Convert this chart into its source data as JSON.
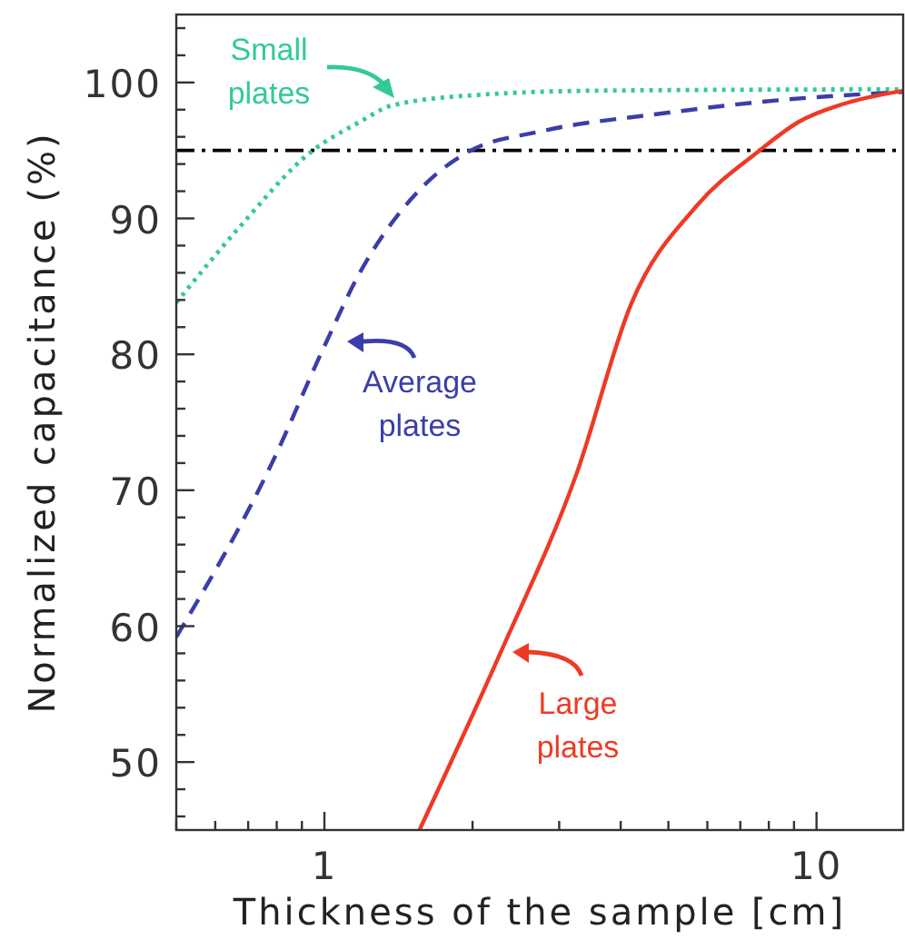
{
  "chart_data": {
    "type": "line",
    "xlabel": "Thickness of the sample [cm]",
    "ylabel": "Normalized capacitance (%)",
    "log": "x",
    "xlim": [
      0.5,
      15
    ],
    "ylim": [
      45,
      105
    ],
    "xticks": [
      {
        "value": 0.5,
        "label": null
      },
      {
        "value": 0.6,
        "label": null
      },
      {
        "value": 0.7,
        "label": null
      },
      {
        "value": 0.8,
        "label": null
      },
      {
        "value": 0.9,
        "label": null
      },
      1,
      {
        "value": 2,
        "label": null
      },
      {
        "value": 3,
        "label": null
      },
      {
        "value": 4,
        "label": null
      },
      {
        "value": 5,
        "label": null
      },
      {
        "value": 6,
        "label": null
      },
      {
        "value": 7,
        "label": null
      },
      {
        "value": 8,
        "label": null
      },
      {
        "value": 9,
        "label": null
      },
      10
    ],
    "yticks": [
      {
        "value": 46,
        "label": null
      },
      {
        "value": 48,
        "label": null
      },
      50,
      {
        "value": 52,
        "label": null
      },
      {
        "value": 54,
        "label": null
      },
      {
        "value": 56,
        "label": null
      },
      {
        "value": 58,
        "label": null
      },
      60,
      {
        "value": 62,
        "label": null
      },
      {
        "value": 64,
        "label": null
      },
      {
        "value": 66,
        "label": null
      },
      {
        "value": 68,
        "label": null
      },
      70,
      {
        "value": 72,
        "label": null
      },
      {
        "value": 74,
        "label": null
      },
      {
        "value": 76,
        "label": null
      },
      {
        "value": 78,
        "label": null
      },
      80,
      {
        "value": 82,
        "label": null
      },
      {
        "value": 84,
        "label": null
      },
      {
        "value": 86,
        "label": null
      },
      {
        "value": 88,
        "label": null
      },
      90,
      {
        "value": 92,
        "label": null
      },
      {
        "value": 94,
        "label": null
      },
      {
        "value": 96,
        "label": null
      },
      {
        "value": 98,
        "label": null
      },
      100,
      {
        "value": 102,
        "label": null
      },
      {
        "value": 104,
        "label": null
      }
    ],
    "legend": "center",
    "marker": "none",
    "ref_lines": [
      {
        "axis": "y",
        "value": 95,
        "color": "#000000",
        "line_style": "dashdot"
      }
    ],
    "series": [
      {
        "name": "Small plates",
        "color": "#33c99a",
        "line_style": "dotted",
        "x": [
          0.5,
          0.67,
          0.94,
          1.18,
          1.37,
          2.08,
          3.6,
          15
        ],
        "values": [
          83.8,
          89.3,
          94.9,
          97.1,
          98.3,
          99.1,
          99.4,
          99.5
        ]
      },
      {
        "name": "Average plates",
        "color": "#3b3ea8",
        "line_style": "dashed",
        "x": [
          0.5,
          0.78,
          1.0,
          1.18,
          1.49,
          1.96,
          2.75,
          4.8,
          8.4,
          15
        ],
        "values": [
          59.2,
          71.9,
          80.6,
          86.0,
          91.3,
          94.9,
          96.4,
          97.7,
          98.7,
          99.3
        ]
      },
      {
        "name": "Large plates",
        "color": "#ee3a24",
        "line_style": "solid",
        "x": [
          1.56,
          2.27,
          3.26,
          4.2,
          5.7,
          7.6,
          9.2,
          11.3,
          15
        ],
        "values": [
          45,
          57.9,
          71.3,
          83.7,
          90.9,
          94.9,
          97.1,
          98.4,
          99.4
        ]
      }
    ]
  }
}
